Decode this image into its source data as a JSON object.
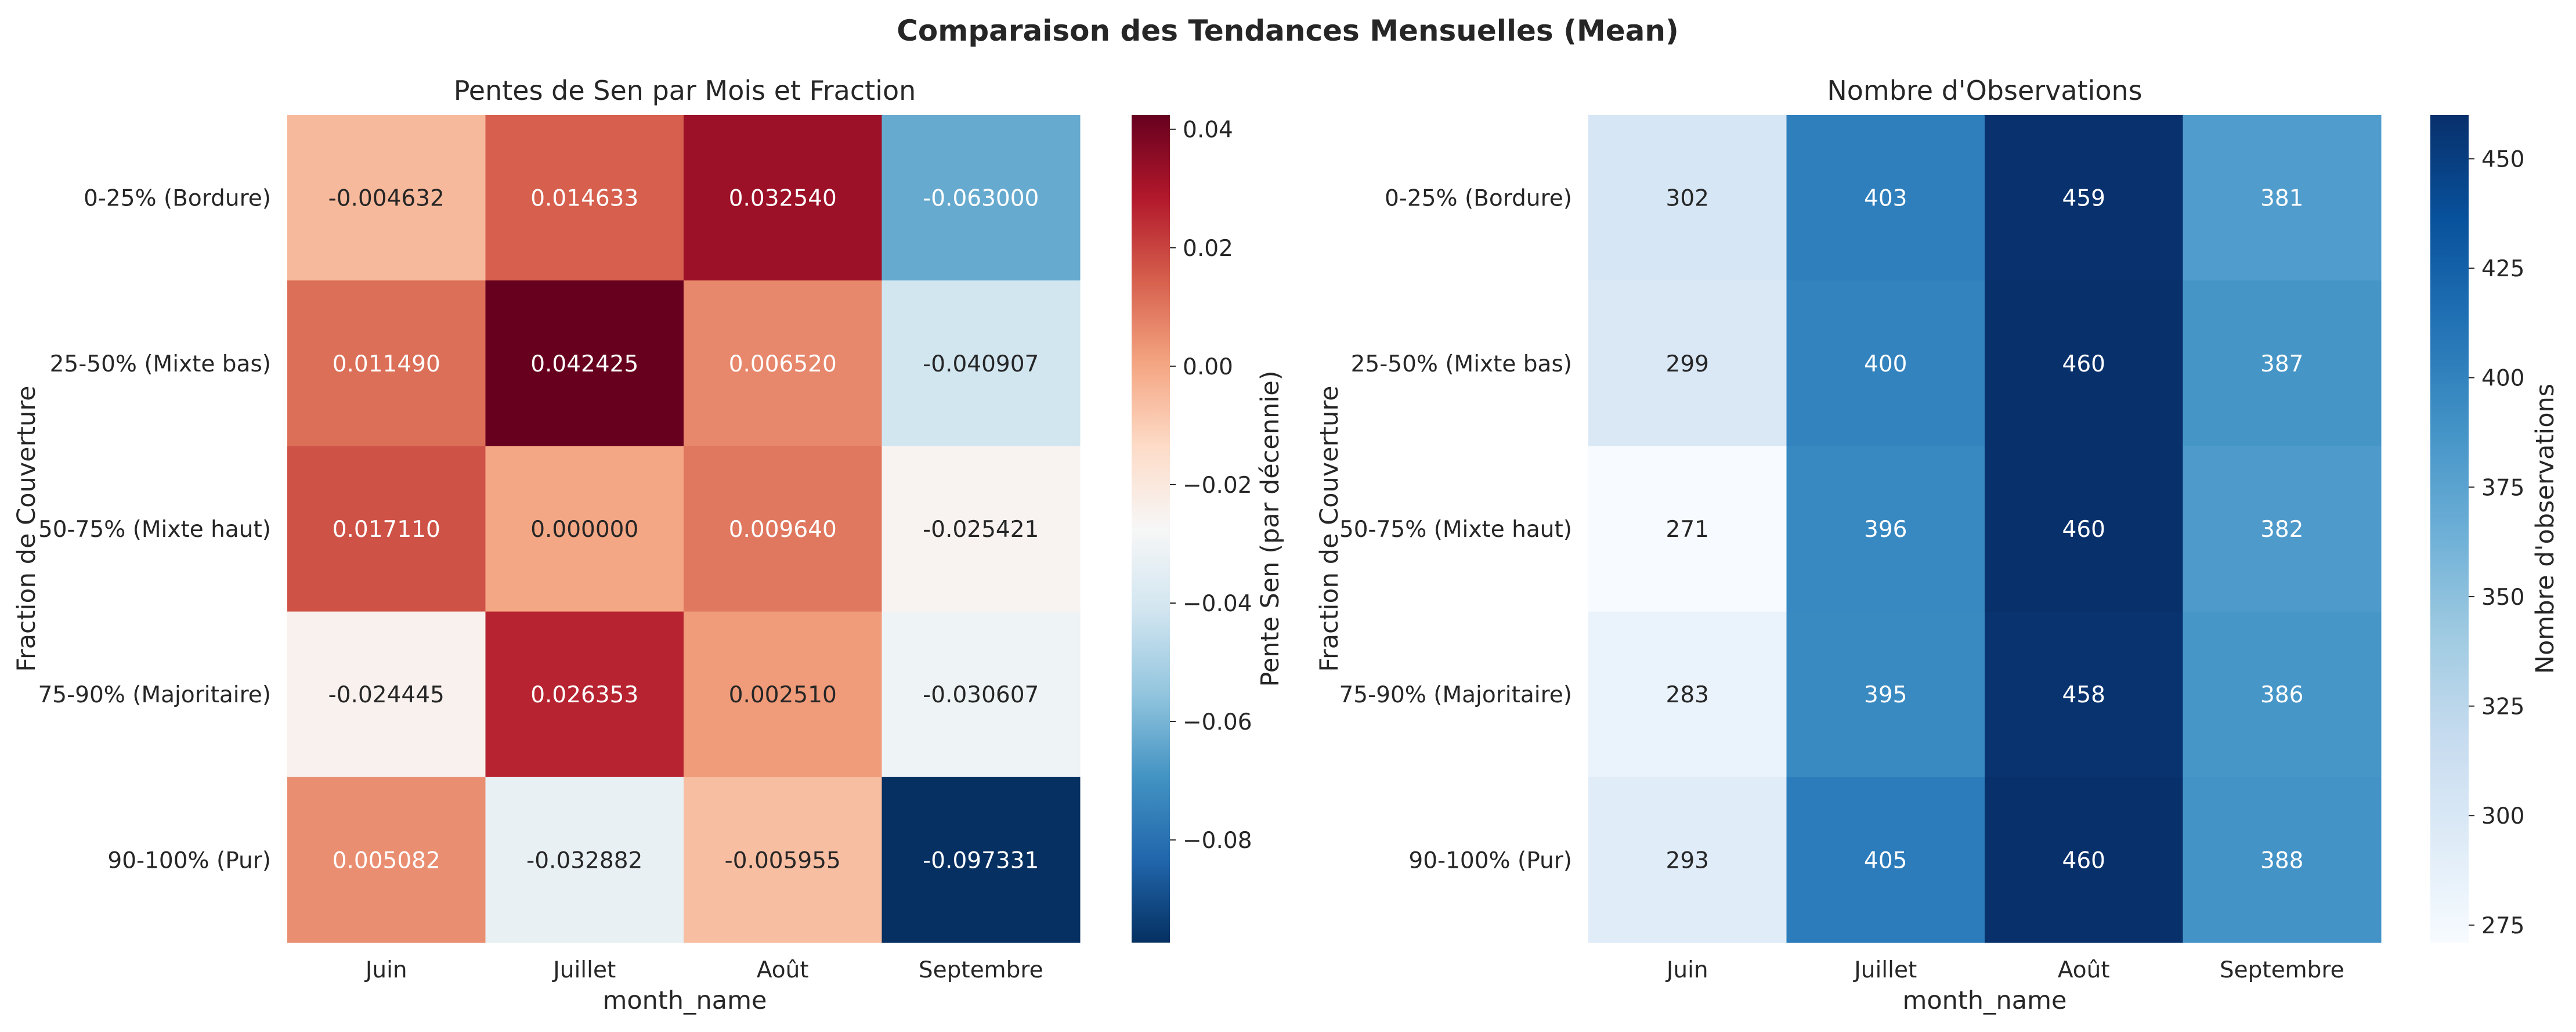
{
  "figure": {
    "title": "Comparaison des Tendances Mensuelles (Mean)"
  },
  "chart_data": [
    {
      "type": "heatmap",
      "title": "Pentes de Sen par Mois et Fraction",
      "xlabel": "month_name",
      "ylabel": "Fraction de Couverture",
      "x_categories": [
        "Juin",
        "Juillet",
        "Août",
        "Septembre"
      ],
      "y_categories": [
        "0-25% (Bordure)",
        "25-50% (Mixte bas)",
        "50-75% (Mixte haut)",
        "75-90% (Majoritaire)",
        "90-100% (Pur)"
      ],
      "values": [
        [
          -0.004632,
          0.014633,
          0.03254,
          -0.063
        ],
        [
          0.01149,
          0.042425,
          0.00652,
          -0.040907
        ],
        [
          0.01711,
          0.0,
          0.00964,
          -0.025421
        ],
        [
          -0.024445,
          0.026353,
          0.00251,
          -0.030607
        ],
        [
          0.005082,
          -0.032882,
          -0.005955,
          -0.097331
        ]
      ],
      "value_labels": [
        [
          "-0.004632",
          "0.014633",
          "0.032540",
          "-0.063000"
        ],
        [
          "0.011490",
          "0.042425",
          "0.006520",
          "-0.040907"
        ],
        [
          "0.017110",
          "0.000000",
          "0.009640",
          "-0.025421"
        ],
        [
          "-0.024445",
          "0.026353",
          "0.002510",
          "-0.030607"
        ],
        [
          "0.005082",
          "-0.032882",
          "-0.005955",
          "-0.097331"
        ]
      ],
      "colormap": "RdBu_r",
      "color_range": [
        -0.097331,
        0.042425
      ],
      "colorbar": {
        "label": "Pente Sen (par décennie)",
        "ticks": [
          0.04,
          0.02,
          0.0,
          -0.02,
          -0.04,
          -0.06,
          -0.08
        ],
        "tick_labels": [
          "0.04",
          "0.02",
          "0.00",
          "−0.02",
          "−0.04",
          "−0.06",
          "−0.08"
        ]
      }
    },
    {
      "type": "heatmap",
      "title": "Nombre d'Observations",
      "xlabel": "month_name",
      "ylabel": "Fraction de Couverture",
      "x_categories": [
        "Juin",
        "Juillet",
        "Août",
        "Septembre"
      ],
      "y_categories": [
        "0-25% (Bordure)",
        "25-50% (Mixte bas)",
        "50-75% (Mixte haut)",
        "75-90% (Majoritaire)",
        "90-100% (Pur)"
      ],
      "values": [
        [
          302,
          403,
          459,
          381
        ],
        [
          299,
          400,
          460,
          387
        ],
        [
          271,
          396,
          460,
          382
        ],
        [
          283,
          395,
          458,
          386
        ],
        [
          293,
          405,
          460,
          388
        ]
      ],
      "value_labels": [
        [
          "302",
          "403",
          "459",
          "381"
        ],
        [
          "299",
          "400",
          "460",
          "387"
        ],
        [
          "271",
          "396",
          "460",
          "382"
        ],
        [
          "283",
          "395",
          "458",
          "386"
        ],
        [
          "293",
          "405",
          "460",
          "388"
        ]
      ],
      "colormap": "Blues",
      "color_range": [
        271,
        460
      ],
      "colorbar": {
        "label": "Nombre d'observations",
        "ticks": [
          450,
          425,
          400,
          375,
          350,
          325,
          300,
          275
        ],
        "tick_labels": [
          "450",
          "425",
          "400",
          "375",
          "350",
          "325",
          "300",
          "275"
        ]
      }
    }
  ]
}
